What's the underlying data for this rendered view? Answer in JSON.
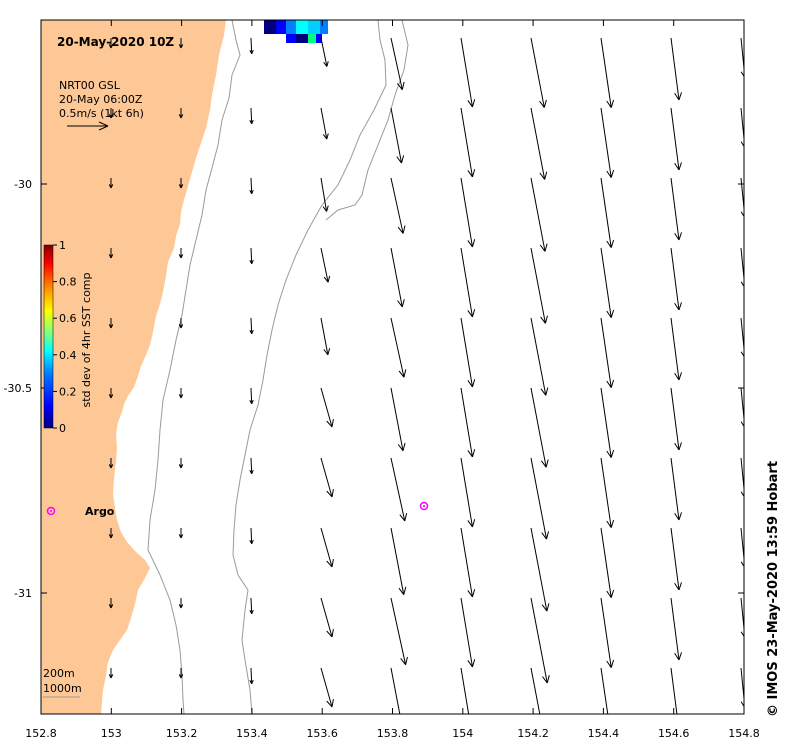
{
  "title": "20-May-2020 10Z",
  "legend": {
    "line1": "NRT00 GSL",
    "line2": "20-May 06:00Z",
    "line3": "0.5m/s (1kt 6h)"
  },
  "colorbar": {
    "label": "std dev of 4hr SST comp",
    "ticks": [
      "1",
      "0.8",
      "0.6",
      "0.4",
      "0.2",
      "0"
    ],
    "colors": [
      "#00007f",
      "#0000ff",
      "#007fff",
      "#00ffff",
      "#7fff7f",
      "#ffff00",
      "#ff7f00",
      "#ff0000",
      "#7f0000"
    ]
  },
  "depth_legend": {
    "a": "200m",
    "b": "1000m"
  },
  "argo_label": "Argo",
  "credit": "© IMOS 23-May-2020 13:59 Hobart",
  "axes": {
    "x_ticks": [
      "152.8",
      "153",
      "153.2",
      "153.4",
      "153.6",
      "153.8",
      "154",
      "154.2",
      "154.4",
      "154.6",
      "154.8"
    ],
    "y_ticks": [
      "-30",
      "-30.5",
      "-31"
    ]
  },
  "colors": {
    "land": "#fdc895",
    "argo": "#ff00ff",
    "contour": "#9a9a9a"
  }
}
